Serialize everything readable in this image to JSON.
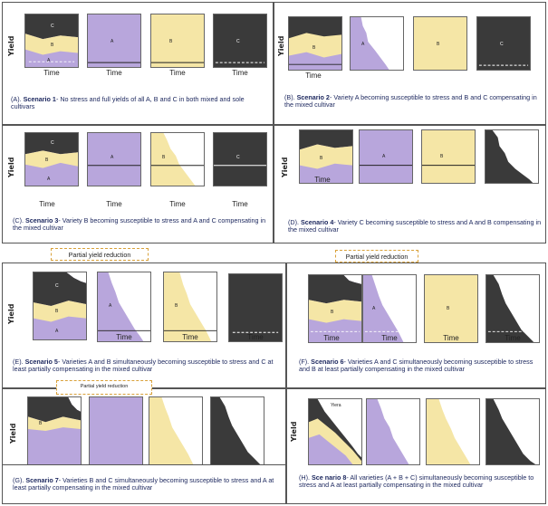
{
  "colors": {
    "stress_black": "#3a3a3a",
    "variety_a_purple": "#b8a6dc",
    "variety_b_yellow": "#f5e6a6",
    "variety_c_black": "#3a3a3a",
    "caption_text": "#1f2a60",
    "callout_border": "#d9a13a"
  },
  "axis": {
    "yield_label": "Yield",
    "time_label": "Time"
  },
  "callout_label": "Partial yield reduction",
  "legend_letters": {
    "a": "A",
    "b": "B",
    "c": "C"
  },
  "annotation_h": "Yiera",
  "panels": [
    {
      "id": "A",
      "prefix": "(A). ",
      "title": "Scenario 1",
      "rest": "- No stress and full yields of all A, B and C in both mixed and sole cultivars"
    },
    {
      "id": "B",
      "prefix": "(B). ",
      "title": "Scenario 2",
      "rest": "- Variety A becoming susceptible to stress and B and C compensating in the mixed cultivar"
    },
    {
      "id": "C",
      "prefix": "(C). ",
      "title": "Scenario 3",
      "rest": "- Variety B becoming susceptible to stress and A and C compensating in the mixed cultivar"
    },
    {
      "id": "D",
      "prefix": "(D). ",
      "title": "Scenario 4",
      "rest": "- Variety C becoming susceptible to stress and A and B compensating in the mixed cultivar"
    },
    {
      "id": "E",
      "prefix": "(E). ",
      "title": "Scenario 5",
      "rest": "- Varieties A and B simultaneously becoming susceptible to stress and C at least partially compensating in the mixed cultivar"
    },
    {
      "id": "F",
      "prefix": "(F). ",
      "title": "Scenario 6",
      "rest": "- Varieties A and C simultaneously becoming susceptible to stress and B at least partially compensating in the mixed cultivar"
    },
    {
      "id": "G",
      "prefix": "(G). ",
      "title": "Scenario 7",
      "rest": "- Varieties B and C simultaneously becoming susceptible to stress and A at least partially compensating in the mixed cultivar"
    },
    {
      "id": "H",
      "prefix": "(H). ",
      "title": "Sce nario 8",
      "rest": "- All varieties (A + B + C) simultaneously becoming susceptible to stress and A at least partially compensating in the mixed cultivar"
    }
  ]
}
